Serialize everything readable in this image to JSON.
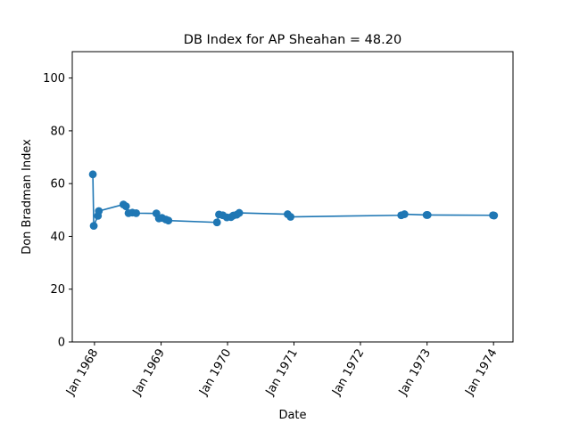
{
  "chart_data": {
    "type": "line",
    "title": "DB Index for AP Sheahan = 48.20",
    "xlabel": "Date",
    "ylabel": "Don Bradman Index",
    "ylim": [
      0,
      110
    ],
    "xlim": [
      "1967-09-01",
      "1974-04-18"
    ],
    "grid": false,
    "line_color": "#1f77b4",
    "marker": "circle",
    "yticks": [
      0,
      20,
      40,
      60,
      80,
      100
    ],
    "xticks": [
      {
        "date": "1968-01-01",
        "label": "Jan 1968"
      },
      {
        "date": "1969-01-01",
        "label": "Jan 1969"
      },
      {
        "date": "1970-01-01",
        "label": "Jan 1970"
      },
      {
        "date": "1971-01-01",
        "label": "Jan 1971"
      },
      {
        "date": "1972-01-01",
        "label": "Jan 1972"
      },
      {
        "date": "1973-01-01",
        "label": "Jan 1973"
      },
      {
        "date": "1974-01-01",
        "label": "Jan 1974"
      }
    ],
    "series": [
      {
        "points": [
          {
            "x": "1967-12-23",
            "y": 63.5
          },
          {
            "x": "1967-12-28",
            "y": 44.0
          },
          {
            "x": "1968-01-20",
            "y": 47.8
          },
          {
            "x": "1968-01-25",
            "y": 49.6
          },
          {
            "x": "1968-06-08",
            "y": 52.1
          },
          {
            "x": "1968-06-22",
            "y": 51.4
          },
          {
            "x": "1968-07-06",
            "y": 48.8
          },
          {
            "x": "1968-07-27",
            "y": 49.0
          },
          {
            "x": "1968-08-17",
            "y": 48.8
          },
          {
            "x": "1968-12-06",
            "y": 48.7
          },
          {
            "x": "1968-12-20",
            "y": 46.8
          },
          {
            "x": "1969-01-06",
            "y": 47.0
          },
          {
            "x": "1969-01-27",
            "y": 46.4
          },
          {
            "x": "1969-02-10",
            "y": 46.0
          },
          {
            "x": "1969-11-04",
            "y": 45.3
          },
          {
            "x": "1969-11-15",
            "y": 48.3
          },
          {
            "x": "1969-12-06",
            "y": 48.0
          },
          {
            "x": "1969-12-28",
            "y": 47.2
          },
          {
            "x": "1970-01-20",
            "y": 47.3
          },
          {
            "x": "1970-02-02",
            "y": 47.9
          },
          {
            "x": "1970-02-20",
            "y": 48.2
          },
          {
            "x": "1970-03-06",
            "y": 48.9
          },
          {
            "x": "1970-11-27",
            "y": 48.4
          },
          {
            "x": "1970-12-13",
            "y": 47.4
          },
          {
            "x": "1972-08-12",
            "y": 48.0
          },
          {
            "x": "1972-08-30",
            "y": 48.4
          },
          {
            "x": "1972-12-29",
            "y": 48.1
          },
          {
            "x": "1973-01-04",
            "y": 48.1
          },
          {
            "x": "1973-12-29",
            "y": 48.0
          },
          {
            "x": "1974-01-04",
            "y": 47.9
          }
        ]
      }
    ]
  }
}
